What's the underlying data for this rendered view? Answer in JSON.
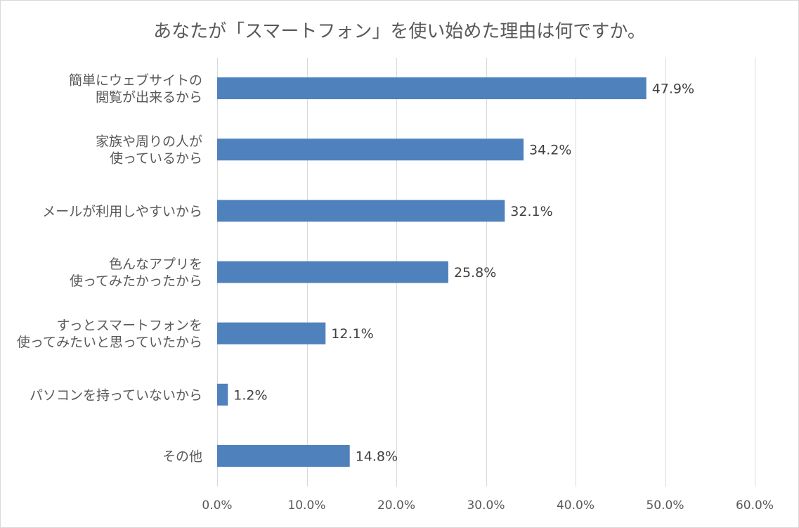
{
  "chart_data": {
    "type": "bar",
    "orientation": "horizontal",
    "title": "あなたが「スマートフォン」を使い始めた理由は何ですか。",
    "categories": [
      [
        "簡単にウェブサイトの",
        "閲覧が出来るから"
      ],
      [
        "家族や周りの人が",
        "使っているから"
      ],
      [
        "メールが利用しやすいから"
      ],
      [
        "色んなアプリを",
        "使ってみたかったから"
      ],
      [
        "すっとスマートフォンを",
        "使ってみたいと思っていたから"
      ],
      [
        "パソコンを持っていないから"
      ],
      [
        "その他"
      ]
    ],
    "values": [
      47.9,
      34.2,
      32.1,
      25.8,
      12.1,
      1.2,
      14.8
    ],
    "value_labels": [
      "47.9%",
      "34.2%",
      "32.1%",
      "25.8%",
      "12.1%",
      "1.2%",
      "14.8%"
    ],
    "xlim": [
      0,
      60
    ],
    "x_ticks": [
      0,
      10,
      20,
      30,
      40,
      50,
      60
    ],
    "x_tick_labels": [
      "0.0%",
      "10.0%",
      "20.0%",
      "30.0%",
      "40.0%",
      "50.0%",
      "60.0%"
    ],
    "grid": true,
    "legend": "none",
    "bar_color": "#4f81bd",
    "grid_color": "#d9d9d9"
  }
}
